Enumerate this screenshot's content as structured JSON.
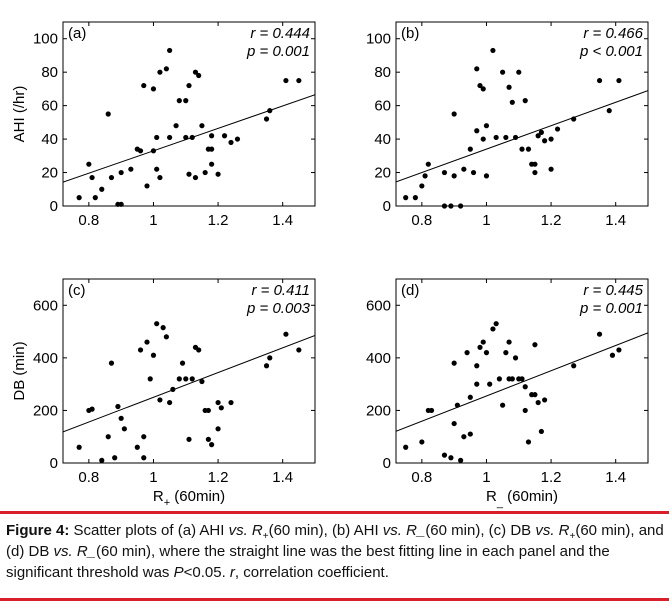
{
  "chart_data": [
    {
      "type": "scatter",
      "panel_label": "(a)",
      "r_text": "r = 0.444",
      "p_text": "p = 0.001",
      "ylabel": "AHI (/hr)",
      "ylim": [
        0,
        110
      ],
      "yticks": [
        0,
        20,
        40,
        60,
        80,
        100
      ],
      "xlim": [
        0.72,
        1.5
      ],
      "xticks": [
        0.8,
        1,
        1.2,
        1.4
      ],
      "xticklabels": [
        "0.8",
        "1",
        "1.2",
        "1.4"
      ],
      "points": [
        [
          0.77,
          5
        ],
        [
          0.8,
          25
        ],
        [
          0.81,
          17
        ],
        [
          0.82,
          5
        ],
        [
          0.84,
          10
        ],
        [
          0.86,
          55
        ],
        [
          0.87,
          17
        ],
        [
          0.89,
          1
        ],
        [
          0.9,
          1
        ],
        [
          0.9,
          20
        ],
        [
          0.93,
          22
        ],
        [
          0.95,
          34
        ],
        [
          0.96,
          33
        ],
        [
          0.97,
          72
        ],
        [
          0.98,
          12
        ],
        [
          1.0,
          70
        ],
        [
          1.0,
          33
        ],
        [
          1.01,
          41
        ],
        [
          1.01,
          22
        ],
        [
          1.02,
          80
        ],
        [
          1.02,
          17
        ],
        [
          1.04,
          82
        ],
        [
          1.05,
          41
        ],
        [
          1.05,
          93
        ],
        [
          1.07,
          48
        ],
        [
          1.08,
          63
        ],
        [
          1.1,
          63
        ],
        [
          1.1,
          41
        ],
        [
          1.11,
          72
        ],
        [
          1.11,
          19
        ],
        [
          1.12,
          41
        ],
        [
          1.13,
          17
        ],
        [
          1.13,
          80
        ],
        [
          1.14,
          78
        ],
        [
          1.15,
          48
        ],
        [
          1.16,
          20
        ],
        [
          1.17,
          34
        ],
        [
          1.18,
          42
        ],
        [
          1.18,
          34
        ],
        [
          1.18,
          25
        ],
        [
          1.2,
          19
        ],
        [
          1.22,
          42
        ],
        [
          1.24,
          38
        ],
        [
          1.26,
          40
        ],
        [
          1.35,
          52
        ],
        [
          1.36,
          57
        ],
        [
          1.41,
          75
        ],
        [
          1.45,
          75
        ]
      ],
      "fit": {
        "slope": 67,
        "intercept": -34
      }
    },
    {
      "type": "scatter",
      "panel_label": "(b)",
      "r_text": "r = 0.466",
      "p_text": "p < 0.001",
      "ylim": [
        0,
        110
      ],
      "yticks": [
        0,
        20,
        40,
        60,
        80,
        100
      ],
      "xlim": [
        0.72,
        1.5
      ],
      "xticks": [
        0.8,
        1,
        1.2,
        1.4
      ],
      "xticklabels": [
        "0.8",
        "1",
        "1.2",
        "1.4"
      ],
      "points": [
        [
          0.75,
          5
        ],
        [
          0.78,
          5
        ],
        [
          0.8,
          12
        ],
        [
          0.81,
          18
        ],
        [
          0.82,
          25
        ],
        [
          0.87,
          0
        ],
        [
          0.87,
          20
        ],
        [
          0.89,
          0
        ],
        [
          0.9,
          18
        ],
        [
          0.9,
          55
        ],
        [
          0.92,
          0
        ],
        [
          0.93,
          22
        ],
        [
          0.95,
          34
        ],
        [
          0.96,
          20
        ],
        [
          0.97,
          45
        ],
        [
          0.97,
          82
        ],
        [
          0.98,
          72
        ],
        [
          0.99,
          70
        ],
        [
          0.99,
          40
        ],
        [
          1.0,
          18
        ],
        [
          1.0,
          48
        ],
        [
          1.02,
          93
        ],
        [
          1.03,
          41
        ],
        [
          1.05,
          80
        ],
        [
          1.06,
          41
        ],
        [
          1.07,
          71
        ],
        [
          1.08,
          62
        ],
        [
          1.09,
          41
        ],
        [
          1.1,
          80
        ],
        [
          1.11,
          34
        ],
        [
          1.12,
          63
        ],
        [
          1.13,
          34
        ],
        [
          1.14,
          25
        ],
        [
          1.15,
          20
        ],
        [
          1.15,
          25
        ],
        [
          1.16,
          42
        ],
        [
          1.17,
          44
        ],
        [
          1.18,
          39
        ],
        [
          1.2,
          22
        ],
        [
          1.2,
          40
        ],
        [
          1.22,
          46
        ],
        [
          1.27,
          52
        ],
        [
          1.35,
          75
        ],
        [
          1.38,
          57
        ],
        [
          1.41,
          75
        ]
      ],
      "fit": {
        "slope": 70,
        "intercept": -36
      }
    },
    {
      "type": "scatter",
      "panel_label": "(c)",
      "r_text": "r = 0.411",
      "p_text": "p = 0.003",
      "ylabel": "DB (min)",
      "xlabel_main": "R",
      "xlabel_sub": "+",
      "xlabel_rest": " (60min)",
      "ylim": [
        0,
        700
      ],
      "yticks": [
        0,
        200,
        400,
        600
      ],
      "xlim": [
        0.72,
        1.5
      ],
      "xticks": [
        0.8,
        1,
        1.2,
        1.4
      ],
      "xticklabels": [
        "0.8",
        "1",
        "1.2",
        "1.4"
      ],
      "points": [
        [
          0.77,
          60
        ],
        [
          0.8,
          200
        ],
        [
          0.81,
          205
        ],
        [
          0.84,
          10
        ],
        [
          0.86,
          100
        ],
        [
          0.87,
          380
        ],
        [
          0.88,
          20
        ],
        [
          0.89,
          215
        ],
        [
          0.9,
          170
        ],
        [
          0.91,
          130
        ],
        [
          0.95,
          60
        ],
        [
          0.96,
          430
        ],
        [
          0.97,
          20
        ],
        [
          0.97,
          100
        ],
        [
          0.98,
          460
        ],
        [
          0.99,
          320
        ],
        [
          1.0,
          410
        ],
        [
          1.01,
          530
        ],
        [
          1.02,
          240
        ],
        [
          1.03,
          515
        ],
        [
          1.04,
          480
        ],
        [
          1.05,
          230
        ],
        [
          1.06,
          280
        ],
        [
          1.08,
          320
        ],
        [
          1.09,
          380
        ],
        [
          1.1,
          320
        ],
        [
          1.11,
          90
        ],
        [
          1.12,
          320
        ],
        [
          1.13,
          440
        ],
        [
          1.14,
          430
        ],
        [
          1.15,
          310
        ],
        [
          1.16,
          200
        ],
        [
          1.17,
          90
        ],
        [
          1.17,
          200
        ],
        [
          1.18,
          70
        ],
        [
          1.2,
          130
        ],
        [
          1.2,
          230
        ],
        [
          1.21,
          210
        ],
        [
          1.24,
          230
        ],
        [
          1.35,
          370
        ],
        [
          1.36,
          400
        ],
        [
          1.41,
          490
        ],
        [
          1.45,
          430
        ]
      ],
      "fit": {
        "slope": 470,
        "intercept": -220
      }
    },
    {
      "type": "scatter",
      "panel_label": "(d)",
      "r_text": "r = 0.445",
      "p_text": "p = 0.001",
      "xlabel_main": "R",
      "xlabel_sub": "_",
      "xlabel_rest": " (60min)",
      "ylim": [
        0,
        700
      ],
      "yticks": [
        0,
        200,
        400,
        600
      ],
      "xlim": [
        0.72,
        1.5
      ],
      "xticks": [
        0.8,
        1,
        1.2,
        1.4
      ],
      "xticklabels": [
        "0.8",
        "1",
        "1.2",
        "1.4"
      ],
      "points": [
        [
          0.75,
          60
        ],
        [
          0.8,
          80
        ],
        [
          0.82,
          200
        ],
        [
          0.83,
          200
        ],
        [
          0.87,
          30
        ],
        [
          0.89,
          20
        ],
        [
          0.9,
          150
        ],
        [
          0.9,
          380
        ],
        [
          0.91,
          220
        ],
        [
          0.92,
          10
        ],
        [
          0.93,
          100
        ],
        [
          0.94,
          420
        ],
        [
          0.95,
          250
        ],
        [
          0.95,
          110
        ],
        [
          0.97,
          370
        ],
        [
          0.97,
          300
        ],
        [
          0.98,
          440
        ],
        [
          0.99,
          460
        ],
        [
          1.0,
          420
        ],
        [
          1.01,
          300
        ],
        [
          1.02,
          510
        ],
        [
          1.03,
          530
        ],
        [
          1.04,
          320
        ],
        [
          1.05,
          220
        ],
        [
          1.06,
          420
        ],
        [
          1.07,
          460
        ],
        [
          1.07,
          320
        ],
        [
          1.08,
          320
        ],
        [
          1.09,
          400
        ],
        [
          1.1,
          320
        ],
        [
          1.11,
          320
        ],
        [
          1.12,
          290
        ],
        [
          1.12,
          200
        ],
        [
          1.13,
          80
        ],
        [
          1.14,
          260
        ],
        [
          1.15,
          260
        ],
        [
          1.15,
          450
        ],
        [
          1.16,
          230
        ],
        [
          1.17,
          120
        ],
        [
          1.18,
          240
        ],
        [
          1.27,
          370
        ],
        [
          1.35,
          490
        ],
        [
          1.39,
          410
        ],
        [
          1.41,
          430
        ]
      ],
      "fit": {
        "slope": 480,
        "intercept": -225
      }
    }
  ],
  "caption": {
    "bold": "Figure 4:",
    "t1": " Scatter plots of (a) AHI ",
    "vs1": "vs. R",
    "sub1": "+",
    "t2": "(60 min), (b) AHI ",
    "vs2": "vs. R_",
    "t3": "(60 min), (c) DB ",
    "vs3": "vs. R",
    "sub3": "+",
    "t4": "(60 min), and (d) DB ",
    "vs4": "vs. R_",
    "t5": "(60 min), where the straight line was the best fitting line in each panel and the significant threshold was ",
    "pe": "P",
    "t6": "<0.05. ",
    "re": "r",
    "t7": ", correlation coefficient."
  },
  "colors": {
    "rule": "#d9202a",
    "ink": "#000000"
  }
}
